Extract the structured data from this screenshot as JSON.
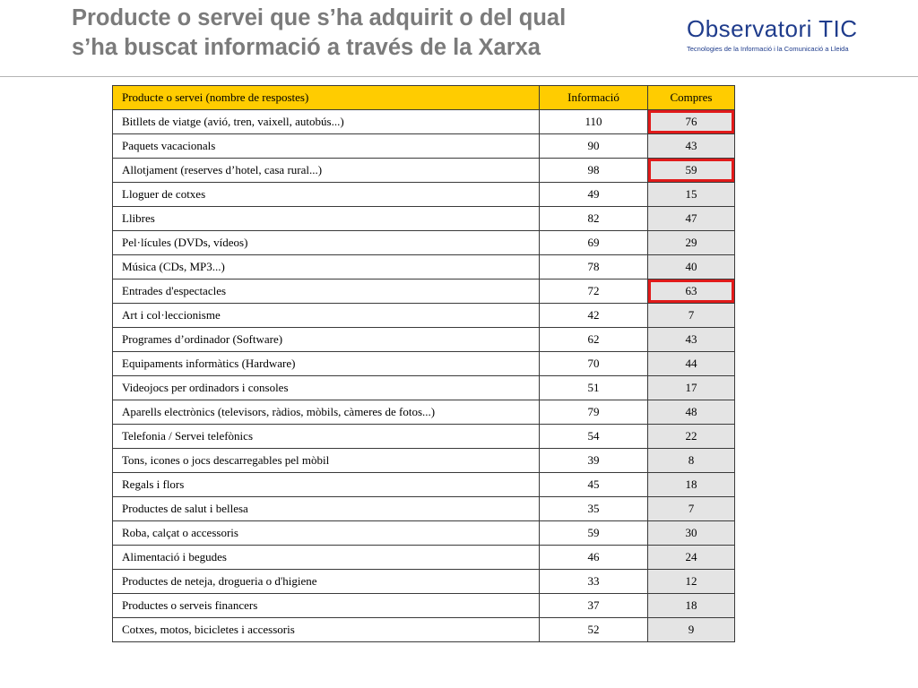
{
  "header": {
    "title_line1": "Producte o servei que s’ha adquirit o del qual",
    "title_line2": "s’ha buscat informació a través de la Xarxa"
  },
  "logo": {
    "name": "Observatori TIC",
    "tagline": "Tecnologies de la Informació i la Comunicació a Lleida"
  },
  "table": {
    "columns": [
      "Producte o servei (nombre de respostes)",
      "Informació",
      "Compres"
    ],
    "highlighted_cells_color": "#e11a1a",
    "header_color": "#ffcc00",
    "rows": [
      {
        "product": "Bitllets de viatge (avió, tren, vaixell, autobús...)",
        "info": "110",
        "purchases": "76",
        "highlighted": true
      },
      {
        "product": "Paquets vacacionals",
        "info": "90",
        "purchases": "43",
        "highlighted": false
      },
      {
        "product": "Allotjament (reserves d’hotel, casa rural...)",
        "info": "98",
        "purchases": "59",
        "highlighted": true
      },
      {
        "product": "Lloguer de cotxes",
        "info": "49",
        "purchases": "15",
        "highlighted": false
      },
      {
        "product": "Llibres",
        "info": "82",
        "purchases": "47",
        "highlighted": false
      },
      {
        "product": "Pel·lícules (DVDs, vídeos)",
        "info": "69",
        "purchases": "29",
        "highlighted": false
      },
      {
        "product": "Música (CDs, MP3...)",
        "info": "78",
        "purchases": "40",
        "highlighted": false
      },
      {
        "product": "Entrades d'espectacles",
        "info": "72",
        "purchases": "63",
        "highlighted": true
      },
      {
        "product": "Art i col·leccionisme",
        "info": "42",
        "purchases": "7",
        "highlighted": false
      },
      {
        "product": "Programes d’ordinador (Software)",
        "info": "62",
        "purchases": "43",
        "highlighted": false
      },
      {
        "product": "Equipaments informàtics (Hardware)",
        "info": "70",
        "purchases": "44",
        "highlighted": false
      },
      {
        "product": "Videojocs per ordinadors i consoles",
        "info": "51",
        "purchases": "17",
        "highlighted": false
      },
      {
        "product": "Aparells electrònics (televisors, ràdios, mòbils, càmeres de fotos...)",
        "info": "79",
        "purchases": "48",
        "highlighted": false
      },
      {
        "product": "Telefonia / Servei telefònics",
        "info": "54",
        "purchases": "22",
        "highlighted": false
      },
      {
        "product": "Tons, icones o jocs descarregables pel mòbil",
        "info": "39",
        "purchases": "8",
        "highlighted": false
      },
      {
        "product": "Regals i flors",
        "info": "45",
        "purchases": "18",
        "highlighted": false
      },
      {
        "product": "Productes de salut i bellesa",
        "info": "35",
        "purchases": "7",
        "highlighted": false
      },
      {
        "product": "Roba, calçat o accessoris",
        "info": "59",
        "purchases": "30",
        "highlighted": false
      },
      {
        "product": "Alimentació i begudes",
        "info": "46",
        "purchases": "24",
        "highlighted": false
      },
      {
        "product": "Productes de neteja, drogueria o d'higiene",
        "info": "33",
        "purchases": "12",
        "highlighted": false
      },
      {
        "product": "Productes o serveis financers",
        "info": "37",
        "purchases": "18",
        "highlighted": false
      },
      {
        "product": "Cotxes, motos, bicicletes i accessoris",
        "info": "52",
        "purchases": "9",
        "highlighted": false
      }
    ]
  }
}
